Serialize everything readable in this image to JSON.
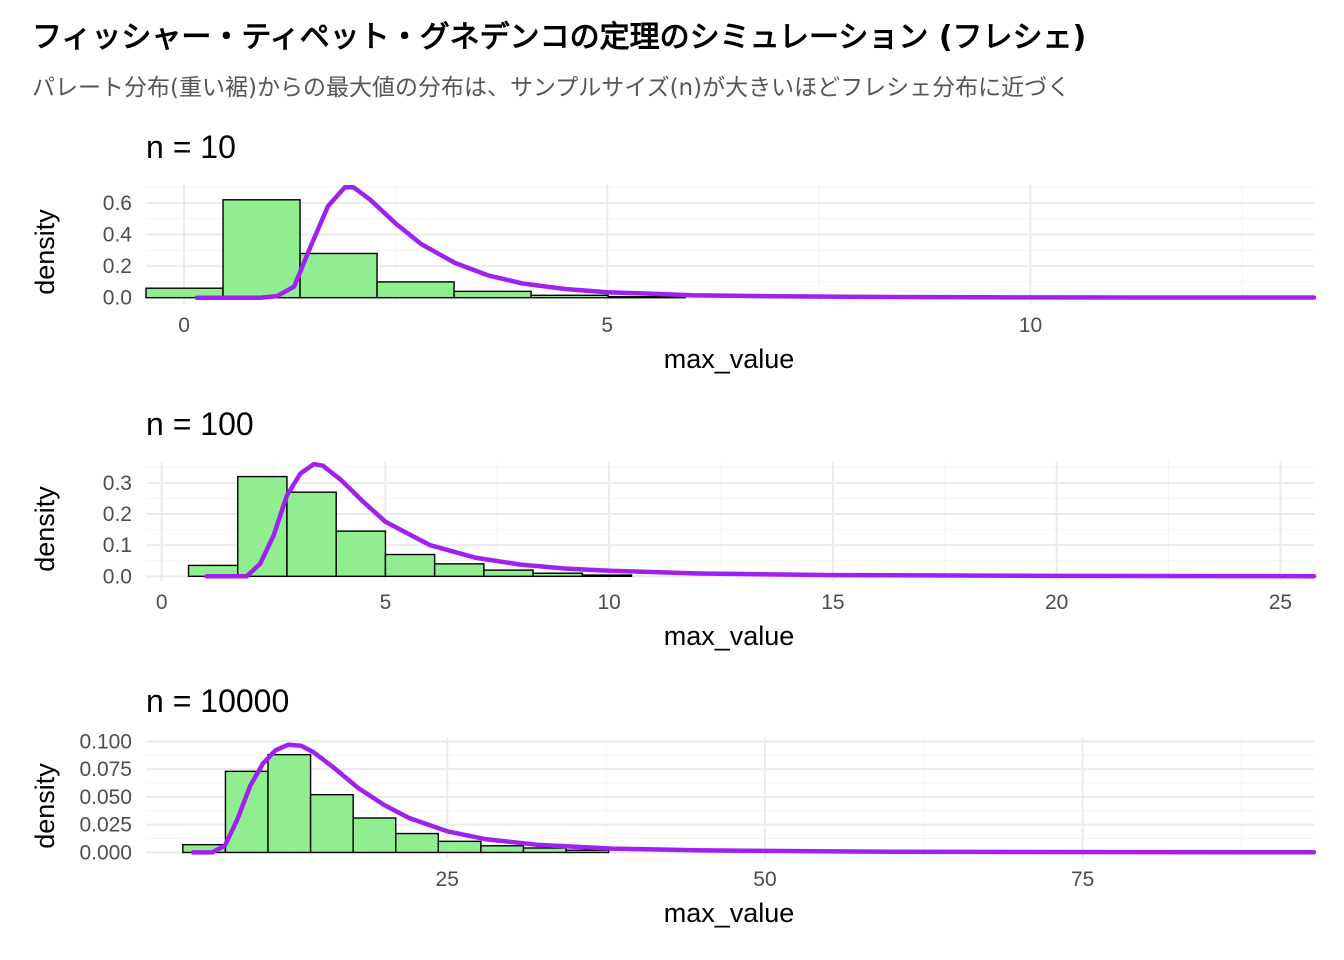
{
  "title": "フィッシャー・ティペット・グネデンコの定理のシミュレーション (フレシェ)",
  "subtitle": "パレート分布(重い裾)からの最大値の分布は、サンプルサイズ(n)が大きいほどフレシェ分布に近づく",
  "colors": {
    "bar_fill": "#90EE90",
    "bar_stroke": "#000000",
    "curve": "#A020F0",
    "grid_major": "#EBEBEB",
    "grid_minor": "#F4F4F4",
    "axis_text": "#4D4D4D"
  },
  "chart_data": [
    {
      "type": "bar",
      "panel_title": "n = 10",
      "xlabel": "max_value",
      "ylabel": "density",
      "xlim": [
        -0.45,
        13.35
      ],
      "ylim": [
        -0.04,
        0.72
      ],
      "x_ticks": [
        0,
        5,
        10
      ],
      "x_tick_labels": [
        "0",
        "5",
        "10"
      ],
      "y_ticks": [
        0.0,
        0.2,
        0.4,
        0.6
      ],
      "y_tick_labels": [
        "0.0",
        "0.2",
        "0.4",
        "0.6"
      ],
      "bins": [
        {
          "x0": -0.45,
          "x1": 0.46,
          "density": 0.06
        },
        {
          "x0": 0.46,
          "x1": 1.37,
          "density": 0.62
        },
        {
          "x0": 1.37,
          "x1": 2.28,
          "density": 0.28
        },
        {
          "x0": 2.28,
          "x1": 3.19,
          "density": 0.1
        },
        {
          "x0": 3.19,
          "x1": 4.1,
          "density": 0.04
        },
        {
          "x0": 4.1,
          "x1": 5.01,
          "density": 0.015
        },
        {
          "x0": 5.01,
          "x1": 5.92,
          "density": 0.006
        }
      ],
      "curve": {
        "x": [
          0.15,
          0.9,
          1.1,
          1.3,
          1.5,
          1.7,
          1.9,
          2.0,
          2.2,
          2.5,
          2.8,
          3.2,
          3.6,
          4.0,
          4.5,
          5.0,
          6.0,
          7.0,
          8.0,
          10.0,
          13.35
        ],
        "y": [
          0.0,
          0.0,
          0.01,
          0.07,
          0.33,
          0.58,
          0.7,
          0.7,
          0.62,
          0.47,
          0.34,
          0.22,
          0.14,
          0.09,
          0.055,
          0.035,
          0.016,
          0.009,
          0.005,
          0.002,
          0.001
        ]
      }
    },
    {
      "type": "bar",
      "panel_title": "n = 100",
      "xlabel": "max_value",
      "ylabel": "density",
      "xlim": [
        -0.35,
        25.75
      ],
      "ylim": [
        -0.015,
        0.37
      ],
      "x_ticks": [
        0,
        5,
        10,
        15,
        20,
        25
      ],
      "x_tick_labels": [
        "0",
        "5",
        "10",
        "15",
        "20",
        "25"
      ],
      "y_ticks": [
        0.0,
        0.1,
        0.2,
        0.3
      ],
      "y_tick_labels": [
        "0.0",
        "0.1",
        "0.2",
        "0.3"
      ],
      "bins": [
        {
          "x0": 0.6,
          "x1": 1.7,
          "density": 0.035
        },
        {
          "x0": 1.7,
          "x1": 2.8,
          "density": 0.32
        },
        {
          "x0": 2.8,
          "x1": 3.9,
          "density": 0.27
        },
        {
          "x0": 3.9,
          "x1": 5.0,
          "density": 0.145
        },
        {
          "x0": 5.0,
          "x1": 6.1,
          "density": 0.07
        },
        {
          "x0": 6.1,
          "x1": 7.2,
          "density": 0.04
        },
        {
          "x0": 7.2,
          "x1": 8.3,
          "density": 0.02
        },
        {
          "x0": 8.3,
          "x1": 9.4,
          "density": 0.01
        },
        {
          "x0": 9.4,
          "x1": 10.5,
          "density": 0.004
        }
      ],
      "curve": {
        "x": [
          1.0,
          1.9,
          2.2,
          2.5,
          2.8,
          3.1,
          3.4,
          3.6,
          4.0,
          4.5,
          5.0,
          6.0,
          7.0,
          8.0,
          9.0,
          10.0,
          12.0,
          15.0,
          20.0,
          25.75
        ],
        "y": [
          0.0,
          0.0,
          0.04,
          0.13,
          0.26,
          0.33,
          0.36,
          0.355,
          0.31,
          0.24,
          0.175,
          0.1,
          0.06,
          0.038,
          0.025,
          0.018,
          0.009,
          0.004,
          0.0015,
          0.0005
        ]
      }
    },
    {
      "type": "bar",
      "panel_title": "n = 10000",
      "xlabel": "max_value",
      "ylabel": "density",
      "xlim": [
        1.3,
        93.2
      ],
      "ylim": [
        -0.005,
        0.103
      ],
      "x_ticks": [
        25,
        50,
        75
      ],
      "x_tick_labels": [
        "25",
        "50",
        "75"
      ],
      "y_ticks": [
        0.0,
        0.025,
        0.05,
        0.075,
        0.1
      ],
      "y_tick_labels": [
        "0.000",
        "0.025",
        "0.050",
        "0.075",
        "0.100"
      ],
      "bins": [
        {
          "x0": 4.2,
          "x1": 7.55,
          "density": 0.007
        },
        {
          "x0": 7.55,
          "x1": 10.9,
          "density": 0.073
        },
        {
          "x0": 10.9,
          "x1": 14.25,
          "density": 0.088
        },
        {
          "x0": 14.25,
          "x1": 17.6,
          "density": 0.052
        },
        {
          "x0": 17.6,
          "x1": 20.95,
          "density": 0.031
        },
        {
          "x0": 20.95,
          "x1": 24.3,
          "density": 0.017
        },
        {
          "x0": 24.3,
          "x1": 27.65,
          "density": 0.01
        },
        {
          "x0": 27.65,
          "x1": 31.0,
          "density": 0.006
        },
        {
          "x0": 31.0,
          "x1": 34.35,
          "density": 0.004
        },
        {
          "x0": 34.35,
          "x1": 37.7,
          "density": 0.002
        }
      ],
      "curve": {
        "x": [
          5.0,
          6.5,
          7.5,
          8.5,
          9.5,
          10.5,
          11.5,
          12.5,
          13.5,
          14.5,
          16,
          18,
          20,
          22,
          25,
          28,
          32,
          38,
          45,
          60,
          93.2
        ],
        "y": [
          0.0,
          0.0,
          0.006,
          0.03,
          0.06,
          0.08,
          0.092,
          0.097,
          0.096,
          0.09,
          0.077,
          0.058,
          0.043,
          0.031,
          0.019,
          0.012,
          0.007,
          0.0035,
          0.0018,
          0.0006,
          0.0001
        ]
      }
    }
  ]
}
